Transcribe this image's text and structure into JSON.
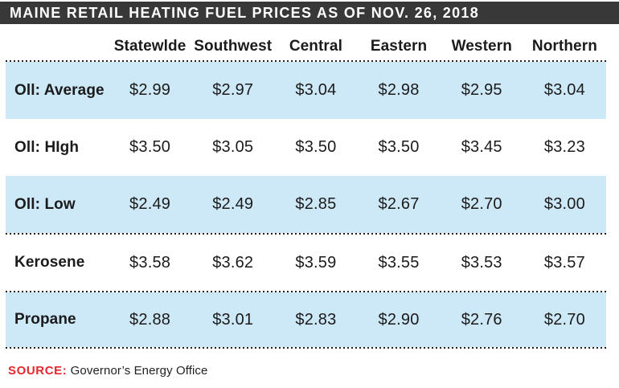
{
  "title": "MAINE RETAIL HEATING FUEL PRICES AS OF NOV. 26, 2018",
  "table": {
    "columns": [
      "Statewlde",
      "Southwest",
      "Central",
      "Eastern",
      "Western",
      "Northern"
    ],
    "rows": [
      {
        "label": "Oll: Average",
        "values": [
          "$2.99",
          "$2.97",
          "$3.04",
          "$2.98",
          "$2.95",
          "$3.04"
        ],
        "highlighted": true
      },
      {
        "label": "Oll: HIgh",
        "values": [
          "$3.50",
          "$3.05",
          "$3.50",
          "$3.50",
          "$3.45",
          "$3.23"
        ],
        "highlighted": false
      },
      {
        "label": "Oll: Low",
        "values": [
          "$2.49",
          "$2.49",
          "$2.85",
          "$2.67",
          "$2.70",
          "$3.00"
        ],
        "highlighted": true
      },
      {
        "label": "Kerosene",
        "values": [
          "$3.58",
          "$3.62",
          "$3.59",
          "$3.55",
          "$3.53",
          "$3.57"
        ],
        "highlighted": false
      },
      {
        "label": "Propane",
        "values": [
          "$2.88",
          "$3.01",
          "$2.83",
          "$2.90",
          "$2.76",
          "$2.70"
        ],
        "highlighted": true
      }
    ]
  },
  "source": {
    "label": "SOURCE:",
    "text": "Governor’s Energy Office"
  },
  "colors": {
    "title_bar": "#383838",
    "title_text": "#ffffff",
    "highlight_row": "#cde8f7",
    "body_text": "#1b1b1b",
    "source_label": "#e4272d",
    "divider_dots": "#1f1f1f"
  },
  "chart_data": {
    "type": "table",
    "title": "MAINE RETAIL HEATING FUEL PRICES AS OF NOV. 26, 2018",
    "categories": [
      "Statewlde",
      "Southwest",
      "Central",
      "Eastern",
      "Western",
      "Northern"
    ],
    "series": [
      {
        "name": "Oll: Average",
        "values": [
          2.99,
          2.97,
          3.04,
          2.98,
          2.95,
          3.04
        ]
      },
      {
        "name": "Oll: HIgh",
        "values": [
          3.5,
          3.05,
          3.5,
          3.5,
          3.45,
          3.23
        ]
      },
      {
        "name": "Oll: Low",
        "values": [
          2.49,
          2.49,
          2.85,
          2.67,
          2.7,
          3.0
        ]
      },
      {
        "name": "Kerosene",
        "values": [
          3.58,
          3.62,
          3.59,
          3.55,
          3.53,
          3.57
        ]
      },
      {
        "name": "Propane",
        "values": [
          2.88,
          3.01,
          2.83,
          2.9,
          2.76,
          2.7
        ]
      }
    ],
    "source": "Governor’s Energy Office",
    "layout": {
      "highlighted_rows": [
        0,
        2,
        4
      ],
      "grid": "dotted-row-dividers",
      "legend": "none"
    }
  }
}
